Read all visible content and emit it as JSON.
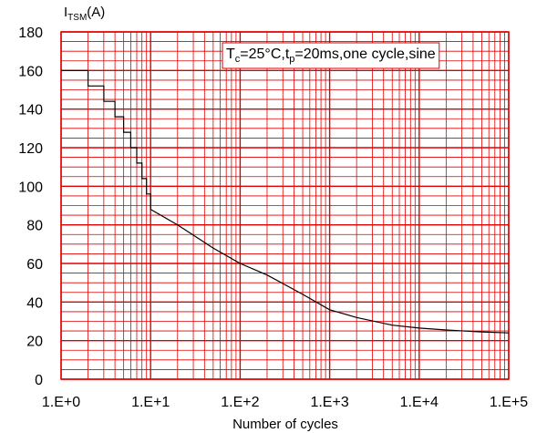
{
  "chart_data": {
    "type": "line",
    "title": "",
    "annotation": {
      "segments": [
        {
          "text": "T",
          "sub": false
        },
        {
          "text": "c",
          "sub": true
        },
        {
          "text": "=25°C,t",
          "sub": false
        },
        {
          "text": "p",
          "sub": true
        },
        {
          "text": "=20ms,one cycle,sine",
          "sub": false
        }
      ]
    },
    "ylabel": {
      "segments": [
        {
          "text": "I",
          "sub": false
        },
        {
          "text": "TSM",
          "sub": true
        },
        {
          "text": "(A)",
          "sub": false
        }
      ]
    },
    "xlabel": "Number of cycles",
    "x_scale": "log",
    "xlim": [
      1,
      100000
    ],
    "ylim": [
      0,
      180
    ],
    "x_ticks": [
      {
        "value": 1,
        "label": "1.E+0"
      },
      {
        "value": 10,
        "label": "1.E+1"
      },
      {
        "value": 100,
        "label": "1.E+2"
      },
      {
        "value": 1000,
        "label": "1.E+3"
      },
      {
        "value": 10000,
        "label": "1.E+4"
      },
      {
        "value": 100000,
        "label": "1.E+5"
      }
    ],
    "y_ticks": [
      0,
      20,
      40,
      60,
      80,
      100,
      120,
      140,
      160,
      180
    ],
    "grid": true,
    "grid_color": "#e00000",
    "line_color": "#000000",
    "series": [
      {
        "step": true,
        "x": [
          1,
          2,
          3,
          4,
          5,
          6,
          7,
          8,
          9,
          10,
          20,
          50,
          100,
          200,
          500,
          1000,
          2000,
          5000,
          10000,
          20000,
          50000,
          100000
        ],
        "y": [
          160,
          152,
          144,
          136,
          128,
          120,
          112,
          104,
          96,
          88,
          80,
          68,
          60,
          54,
          44,
          36,
          32,
          28,
          26.5,
          25.5,
          24.5,
          24
        ]
      }
    ]
  }
}
